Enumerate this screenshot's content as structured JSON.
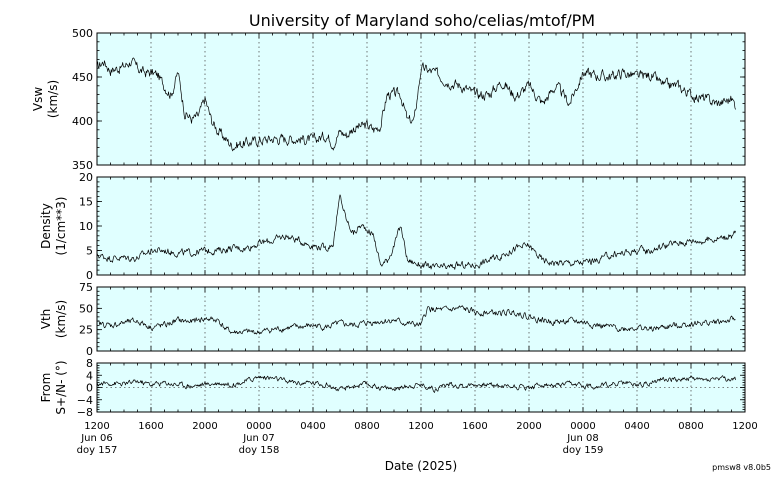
{
  "title": "University of Maryland  soho/celias/mtof/PM",
  "xlabel": "Date (2025)",
  "version": "pmsw8 v8.0b5",
  "chart_data": {
    "type": "line",
    "x_unit": "hours since Jun 06 1200",
    "xlim": [
      0,
      48
    ],
    "x_ticks": [
      {
        "x": 0,
        "label": "1200",
        "sub": [
          "Jun 06",
          "doy 157"
        ]
      },
      {
        "x": 4,
        "label": "1600",
        "sub": []
      },
      {
        "x": 8,
        "label": "2000",
        "sub": []
      },
      {
        "x": 12,
        "label": "0000",
        "sub": [
          "Jun 07",
          "doy 158"
        ]
      },
      {
        "x": 16,
        "label": "0400",
        "sub": []
      },
      {
        "x": 20,
        "label": "0800",
        "sub": []
      },
      {
        "x": 24,
        "label": "1200",
        "sub": []
      },
      {
        "x": 28,
        "label": "1600",
        "sub": []
      },
      {
        "x": 32,
        "label": "2000",
        "sub": []
      },
      {
        "x": 36,
        "label": "0000",
        "sub": [
          "Jun 08",
          "doy 159"
        ]
      },
      {
        "x": 40,
        "label": "0400",
        "sub": []
      },
      {
        "x": 44,
        "label": "0800",
        "sub": []
      },
      {
        "x": 48,
        "label": "1200",
        "sub": []
      }
    ],
    "panels": [
      {
        "name": "Vsw",
        "ylabel": [
          "Vsw",
          "(km/s)"
        ],
        "ylim": [
          350,
          500
        ],
        "yticks": [
          350,
          400,
          450,
          500
        ],
        "zero_line": false,
        "noise": 5,
        "series": {
          "x": [
            0,
            0.5,
            1,
            1.5,
            2,
            2.5,
            3,
            3.5,
            4,
            4.5,
            5,
            5.5,
            6,
            6.5,
            7,
            7.5,
            8,
            8.5,
            9,
            9.5,
            10,
            11,
            12,
            13,
            14,
            15,
            16,
            17,
            17.5,
            18,
            18.5,
            19,
            20,
            20.5,
            21,
            21.5,
            22,
            22.5,
            23,
            23.5,
            24,
            25,
            26,
            27,
            28,
            29,
            30,
            31,
            32,
            33,
            34,
            35,
            36,
            37,
            38,
            39,
            40,
            41,
            42,
            43,
            44,
            45,
            46,
            47,
            47.3
          ],
          "y": [
            460,
            468,
            458,
            460,
            462,
            468,
            460,
            455,
            455,
            452,
            440,
            430,
            455,
            410,
            402,
            405,
            425,
            400,
            388,
            380,
            372,
            375,
            378,
            380,
            380,
            380,
            378,
            384,
            375,
            388,
            384,
            392,
            395,
            390,
            395,
            430,
            430,
            430,
            400,
            400,
            460,
            455,
            445,
            440,
            430,
            430,
            445,
            428,
            440,
            420,
            440,
            420,
            455,
            452,
            450,
            455,
            450,
            452,
            440,
            440,
            430,
            425,
            420,
            425,
            418
          ]
        }
      },
      {
        "name": "Density",
        "ylabel": [
          "Density",
          "(1/cm**3)"
        ],
        "ylim": [
          0,
          20
        ],
        "yticks": [
          0,
          5,
          10,
          15,
          20
        ],
        "zero_line": false,
        "noise": 0.6,
        "series": {
          "x": [
            0,
            1,
            2,
            3,
            4,
            5,
            6,
            7,
            8,
            9,
            10,
            11,
            12,
            13,
            14,
            15,
            16,
            17,
            17.5,
            18,
            18.5,
            19,
            19.5,
            20,
            20.5,
            21,
            21.5,
            22,
            22.5,
            23,
            24,
            25,
            26,
            27,
            28,
            29,
            30,
            31,
            32,
            33,
            34,
            35,
            36,
            37,
            38,
            39,
            40,
            41,
            42,
            43,
            44,
            45,
            46,
            47,
            47.3
          ],
          "y": [
            4,
            3.5,
            3.5,
            3.5,
            5,
            5,
            4.5,
            4.5,
            5,
            5,
            5.5,
            5.5,
            6.5,
            7,
            8,
            7,
            6,
            5.5,
            6.5,
            16,
            11,
            8.5,
            10,
            9.5,
            8,
            2,
            3,
            6,
            10,
            3,
            2,
            1.5,
            1.5,
            2,
            2,
            3,
            4,
            5.5,
            6,
            3,
            2.5,
            2.5,
            2.5,
            3,
            4,
            4.5,
            5,
            5,
            6,
            6.5,
            7,
            7,
            7.5,
            8,
            8.5
          ]
        }
      },
      {
        "name": "Vth",
        "ylabel": [
          "Vth",
          "(km/s)"
        ],
        "ylim": [
          0,
          75
        ],
        "yticks": [
          0,
          25,
          50,
          75
        ],
        "zero_line": false,
        "noise": 3,
        "series": {
          "x": [
            0,
            1,
            2,
            3,
            4,
            5,
            6,
            7,
            8,
            9,
            9.5,
            10,
            11,
            12,
            13,
            14,
            15,
            16,
            17,
            18,
            19,
            20,
            21,
            22,
            23,
            24,
            24.5,
            25,
            26,
            27,
            28,
            29,
            30,
            31,
            32,
            33,
            34,
            35,
            36,
            37,
            38,
            39,
            40,
            41,
            42,
            43,
            44,
            45,
            46,
            47,
            47.3
          ],
          "y": [
            32,
            30,
            33,
            35,
            28,
            30,
            36,
            34,
            38,
            36,
            26,
            22,
            22,
            22,
            25,
            27,
            28,
            30,
            28,
            32,
            30,
            33,
            35,
            36,
            32,
            30,
            50,
            48,
            48,
            50,
            45,
            45,
            44,
            46,
            40,
            36,
            34,
            35,
            34,
            30,
            28,
            26,
            28,
            25,
            28,
            30,
            32,
            33,
            34,
            36,
            36
          ]
        }
      },
      {
        "name": "From",
        "ylabel": [
          "From",
          "S+/N- (°)"
        ],
        "ylim": [
          -8,
          8
        ],
        "yticks": [
          -8,
          -4,
          0,
          4,
          8
        ],
        "ytick_labels": [
          "−8",
          "−4",
          "0",
          "4",
          "8"
        ],
        "zero_line": true,
        "noise": 0.7,
        "series": {
          "x": [
            0,
            1,
            2,
            3,
            4,
            5,
            6,
            7,
            8,
            9,
            10,
            11,
            12,
            13,
            14,
            15,
            16,
            17,
            18,
            19,
            20,
            21,
            22,
            23,
            24,
            25,
            26,
            27,
            28,
            29,
            30,
            31,
            32,
            33,
            34,
            35,
            36,
            37,
            38,
            39,
            40,
            41,
            42,
            43,
            44,
            45,
            46,
            47,
            47.3
          ],
          "y": [
            1,
            1.5,
            1,
            2,
            1,
            1.5,
            1,
            0.5,
            1,
            1.5,
            1,
            2,
            3.5,
            3,
            2,
            1.5,
            1.5,
            1,
            -1,
            0.5,
            1,
            0,
            -0.5,
            0.5,
            1,
            -0.5,
            1,
            0.5,
            1,
            1,
            0.5,
            0.5,
            0,
            1,
            0.5,
            1,
            0.5,
            0.5,
            1,
            1.5,
            1,
            1.5,
            3,
            2.5,
            3,
            2.5,
            3,
            2.5,
            2.5
          ]
        }
      }
    ]
  }
}
